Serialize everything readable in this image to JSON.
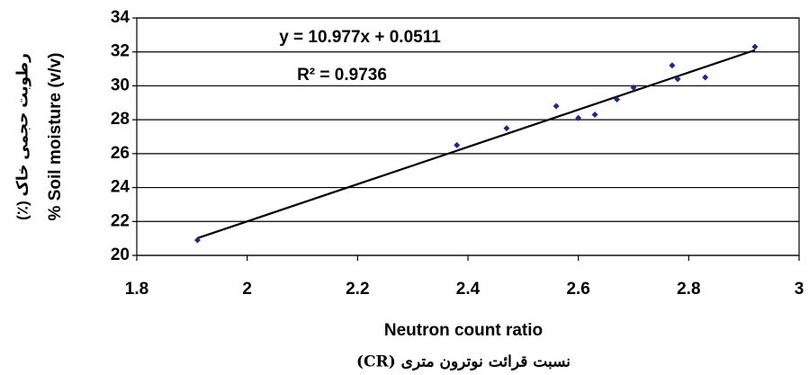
{
  "chart_data": {
    "type": "scatter",
    "x": [
      1.91,
      2.38,
      2.47,
      2.56,
      2.6,
      2.63,
      2.67,
      2.7,
      2.77,
      2.78,
      2.83,
      2.92
    ],
    "values": [
      20.9,
      26.5,
      27.5,
      28.8,
      28.1,
      28.3,
      29.2,
      29.9,
      31.2,
      30.4,
      30.5,
      32.3
    ],
    "color": "#1f2a80",
    "xlim": [
      1.8,
      3
    ],
    "xticks": [
      1.8,
      2,
      2.2,
      2.4,
      2.6,
      2.8,
      3
    ],
    "ylim": [
      20,
      34
    ],
    "yticks": [
      20,
      22,
      24,
      26,
      28,
      30,
      32,
      34
    ],
    "grid": true,
    "trendline": {
      "slope": 10.977,
      "intercept": 0.0511
    },
    "equation": "y = 10.977x + 0.0511",
    "r_squared": "R² = 0.9736",
    "x_label": "Neutron count ratio",
    "x_label_fa": "نسبت قرائت نوترون متری (CR)",
    "y_label": "% Soil moisture (v/v)",
    "y_label_fa": "رطوبت حجمی خاک (٪)"
  }
}
